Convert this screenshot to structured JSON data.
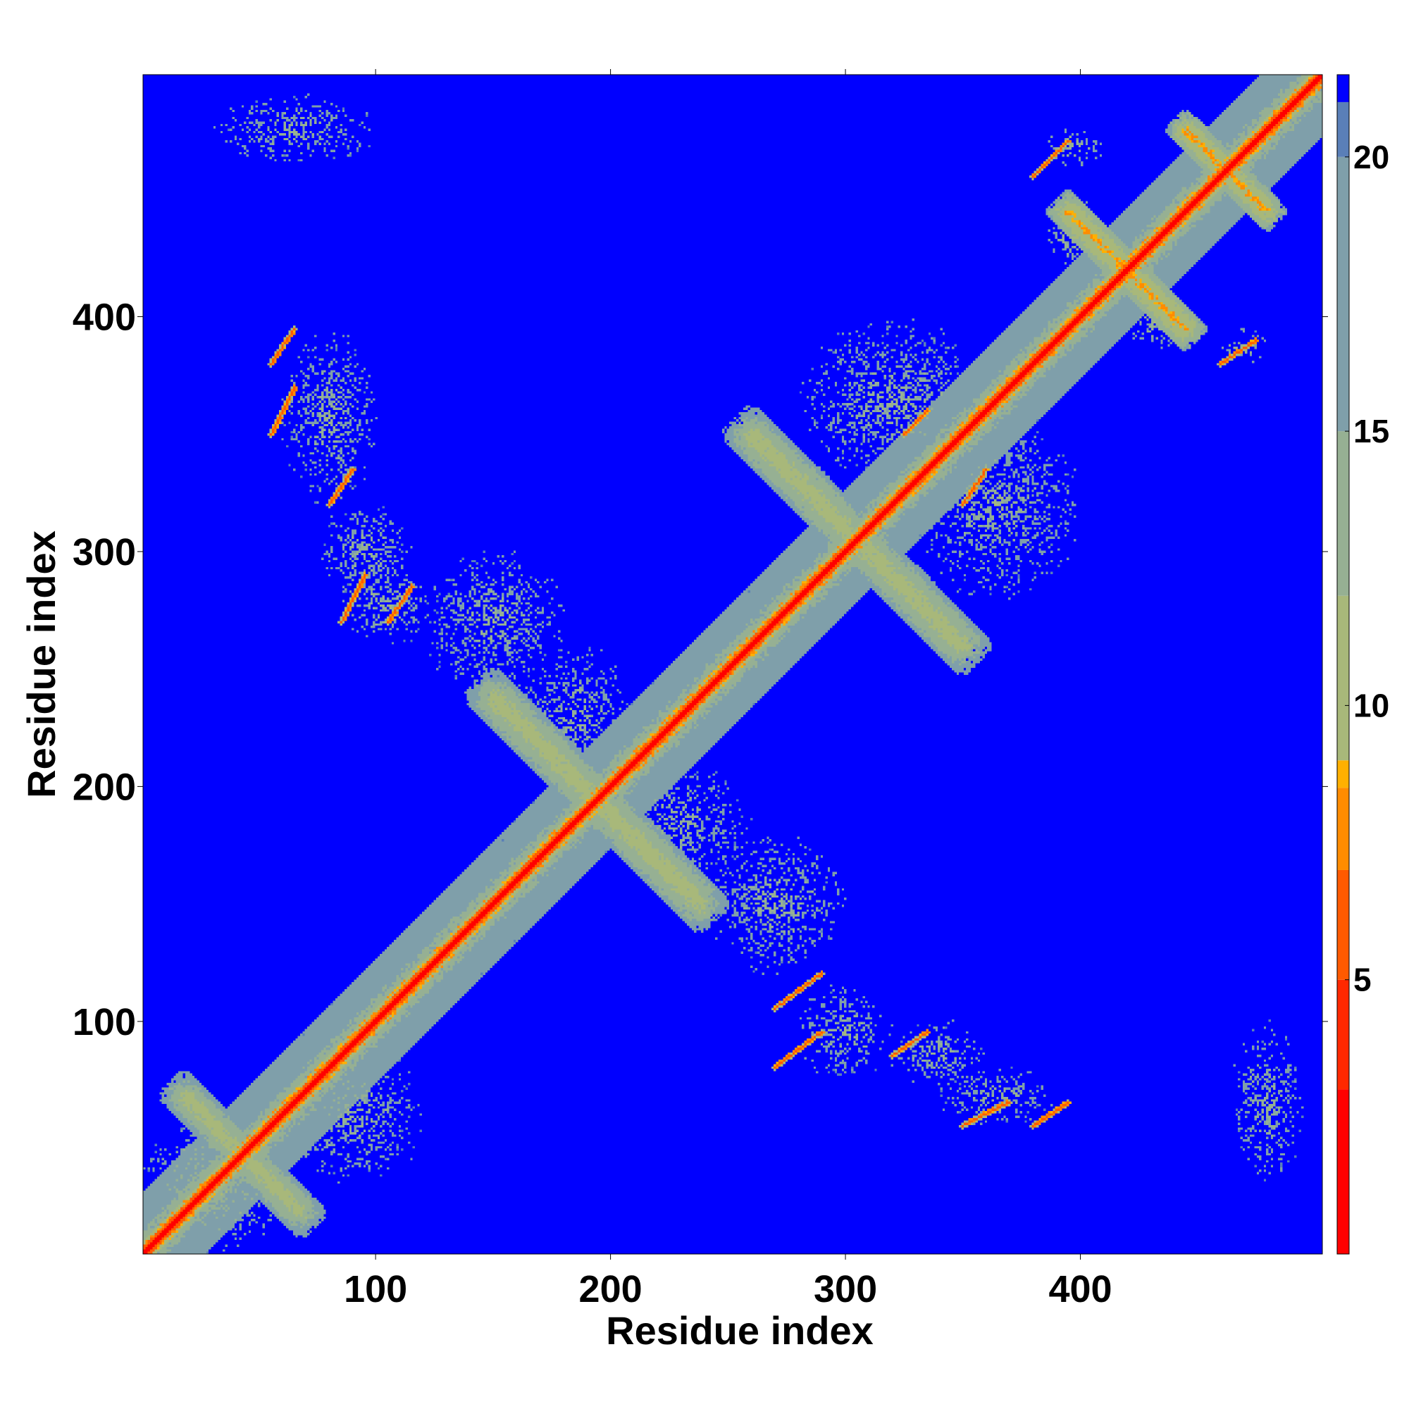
{
  "chart_data": {
    "type": "heatmap",
    "title": "",
    "xlabel": "Residue index",
    "ylabel": "Residue index",
    "xlim": [
      1,
      503
    ],
    "ylim": [
      1,
      503
    ],
    "xticks": [
      100,
      200,
      300,
      400
    ],
    "yticks": [
      100,
      200,
      300,
      400
    ],
    "grid": false,
    "colorbar": {
      "ticks": [
        5,
        10,
        15,
        20
      ],
      "range": [
        0,
        21.5
      ],
      "colors": [
        {
          "stop": 0,
          "color": "#ff0000"
        },
        {
          "stop": 3,
          "color": "#ff2800"
        },
        {
          "stop": 5,
          "color": "#ff5a00"
        },
        {
          "stop": 7,
          "color": "#ff8c00"
        },
        {
          "stop": 8.5,
          "color": "#ffb000"
        },
        {
          "stop": 9,
          "color": "#a8b87a"
        },
        {
          "stop": 12,
          "color": "#96b093"
        },
        {
          "stop": 15,
          "color": "#7f9faa"
        },
        {
          "stop": 20,
          "color": "#5a7fb8"
        },
        {
          "stop": 21,
          "color": "#0000ff"
        }
      ]
    },
    "background_value": 21,
    "background_color": "#0000ff",
    "diagonal": {
      "halfwidth": 5
    },
    "bands": [
      {
        "from": [
          1,
          1
        ],
        "to": [
          503,
          503
        ],
        "halfwidth": 22,
        "value": 12,
        "density": 0.55
      },
      {
        "from": [
          18,
          68
        ],
        "to": [
          68,
          18
        ],
        "halfwidth": 10,
        "value": 9,
        "density": 0.6
      },
      {
        "from": [
          150,
          238
        ],
        "to": [
          238,
          150
        ],
        "halfwidth": 12,
        "value": 9,
        "density": 0.6
      },
      {
        "from": [
          260,
          350
        ],
        "to": [
          350,
          260
        ],
        "halfwidth": 12,
        "value": 9,
        "density": 0.55
      },
      {
        "from": [
          395,
          445
        ],
        "to": [
          445,
          395
        ],
        "halfwidth": 9,
        "value": 7,
        "density": 0.75
      },
      {
        "from": [
          445,
          480
        ],
        "to": [
          480,
          445
        ],
        "halfwidth": 8,
        "value": 7,
        "density": 0.75
      }
    ],
    "regions": [
      {
        "x": [
          280,
          320
        ],
        "y": [
          75,
          115
        ],
        "value": 11
      },
      {
        "x": [
          320,
          360
        ],
        "y": [
          70,
          100
        ],
        "value": 11
      },
      {
        "x": [
          340,
          390
        ],
        "y": [
          55,
          80
        ],
        "value": 11
      },
      {
        "x": [
          75,
          115
        ],
        "y": [
          280,
          320
        ],
        "value": 11
      },
      {
        "x": [
          60,
          100
        ],
        "y": [
          320,
          395
        ],
        "value": 11
      },
      {
        "x": [
          85,
          125
        ],
        "y": [
          260,
          295
        ],
        "value": 11
      },
      {
        "x": [
          385,
          410
        ],
        "y": [
          465,
          480
        ],
        "value": 10
      },
      {
        "x": [
          460,
          480
        ],
        "y": [
          380,
          395
        ],
        "value": 10
      },
      {
        "x": [
          465,
          495
        ],
        "y": [
          30,
          100
        ],
        "value": 11
      },
      {
        "x": [
          30,
          100
        ],
        "y": [
          465,
          495
        ],
        "value": 11
      },
      {
        "x": [
          1,
          60
        ],
        "y": [
          1,
          60
        ],
        "value": 10
      },
      {
        "x": [
          60,
          120
        ],
        "y": [
          30,
          90
        ],
        "value": 11
      },
      {
        "x": [
          240,
          300
        ],
        "y": [
          120,
          180
        ],
        "value": 11
      },
      {
        "x": [
          120,
          180
        ],
        "y": [
          240,
          300
        ],
        "value": 11
      },
      {
        "x": [
          330,
          400
        ],
        "y": [
          280,
          360
        ],
        "value": 11
      },
      {
        "x": [
          280,
          360
        ],
        "y": [
          330,
          400
        ],
        "value": 11
      },
      {
        "x": [
          200,
          260
        ],
        "y": [
          160,
          210
        ],
        "value": 11
      },
      {
        "x": [
          160,
          210
        ],
        "y": [
          200,
          260
        ],
        "value": 11
      },
      {
        "x": [
          420,
          450
        ],
        "y": [
          385,
          410
        ],
        "value": 10
      },
      {
        "x": [
          385,
          410
        ],
        "y": [
          420,
          450
        ],
        "value": 10
      }
    ],
    "contact_lines": [
      {
        "x": [
          270,
          290
        ],
        "y": [
          105,
          120
        ],
        "value": 5
      },
      {
        "x": [
          270,
          290
        ],
        "y": [
          80,
          95
        ],
        "value": 5
      },
      {
        "x": [
          320,
          335
        ],
        "y": [
          85,
          95
        ],
        "value": 5
      },
      {
        "x": [
          350,
          370
        ],
        "y": [
          55,
          65
        ],
        "value": 5
      },
      {
        "x": [
          380,
          395
        ],
        "y": [
          55,
          65
        ],
        "value": 5
      },
      {
        "x": [
          85,
          95
        ],
        "y": [
          270,
          290
        ],
        "value": 5
      },
      {
        "x": [
          55,
          65
        ],
        "y": [
          350,
          370
        ],
        "value": 5
      },
      {
        "x": [
          55,
          65
        ],
        "y": [
          380,
          395
        ],
        "value": 5
      },
      {
        "x": [
          80,
          90
        ],
        "y": [
          320,
          335
        ],
        "value": 5
      },
      {
        "x": [
          105,
          115
        ],
        "y": [
          270,
          285
        ],
        "value": 5
      },
      {
        "x": [
          380,
          395
        ],
        "y": [
          460,
          475
        ],
        "value": 5
      },
      {
        "x": [
          460,
          475
        ],
        "y": [
          380,
          390
        ],
        "value": 5
      },
      {
        "x": [
          325,
          335
        ],
        "y": [
          350,
          360
        ],
        "value": 5
      },
      {
        "x": [
          350,
          360
        ],
        "y": [
          320,
          335
        ],
        "value": 5
      }
    ]
  }
}
